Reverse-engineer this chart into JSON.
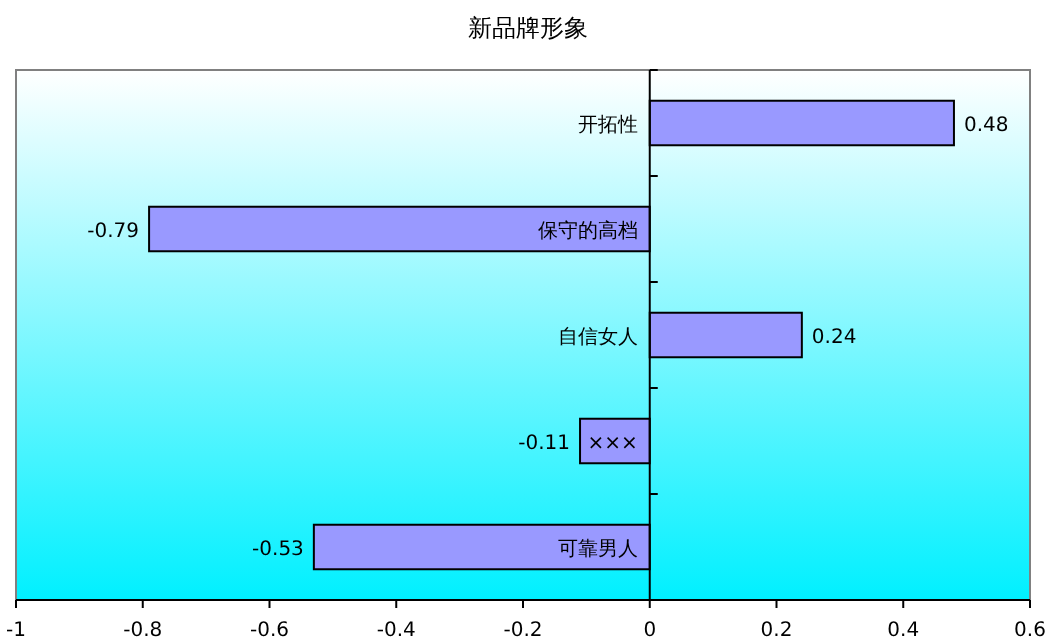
{
  "chart_data": {
    "type": "bar",
    "orientation": "horizontal",
    "title": "新品牌形象",
    "categories": [
      "开拓性",
      "保守的高档",
      "自信女人",
      "×××",
      "可靠男人"
    ],
    "values": [
      0.48,
      -0.79,
      0.24,
      -0.11,
      -0.53
    ],
    "color": "#9999ff",
    "data_labels": true,
    "grid": false,
    "xlim": [
      -1,
      0.6
    ],
    "xticks": [
      -1,
      -0.8,
      -0.6,
      -0.4,
      -0.2,
      0,
      0.2,
      0.4,
      0.6
    ]
  }
}
